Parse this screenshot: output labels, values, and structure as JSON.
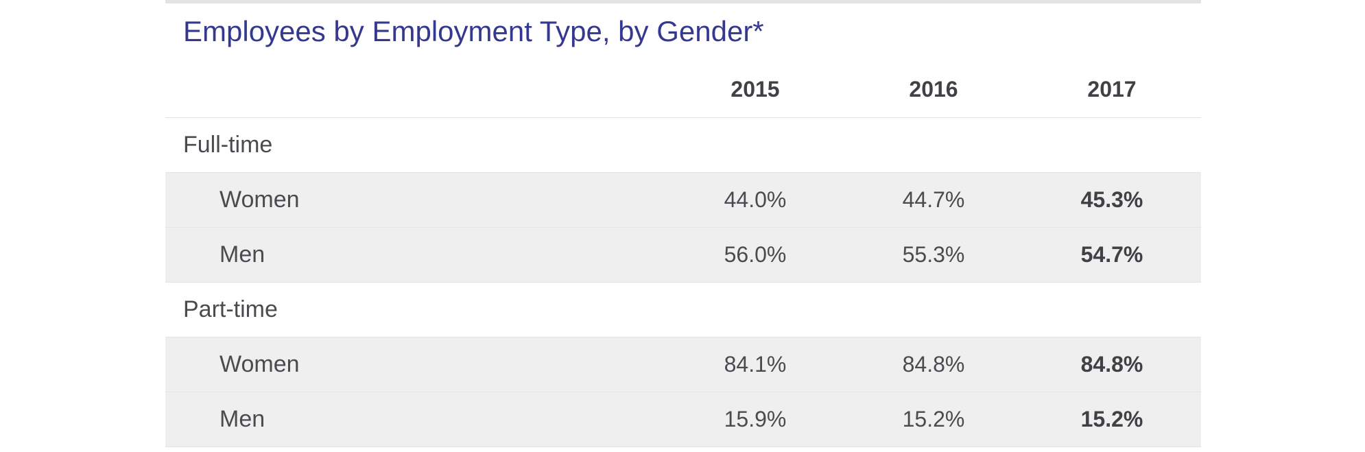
{
  "title": "Employees by Employment Type, by Gender*",
  "columns": [
    "2015",
    "2016",
    "2017"
  ],
  "groups": [
    {
      "label": "Full-time",
      "rows": [
        {
          "label": "Women",
          "values": [
            "44.0%",
            "44.7%",
            "45.3%"
          ]
        },
        {
          "label": "Men",
          "values": [
            "56.0%",
            "55.3%",
            "54.7%"
          ]
        }
      ]
    },
    {
      "label": "Part-time",
      "rows": [
        {
          "label": "Women",
          "values": [
            "84.1%",
            "84.8%",
            "84.8%"
          ]
        },
        {
          "label": "Men",
          "values": [
            "15.9%",
            "15.2%",
            "15.2%"
          ]
        }
      ]
    }
  ],
  "colors": {
    "title": "#35388f",
    "text": "#4a4a4f",
    "row_shade": "#efefef",
    "rule": "#e3e3e3"
  }
}
